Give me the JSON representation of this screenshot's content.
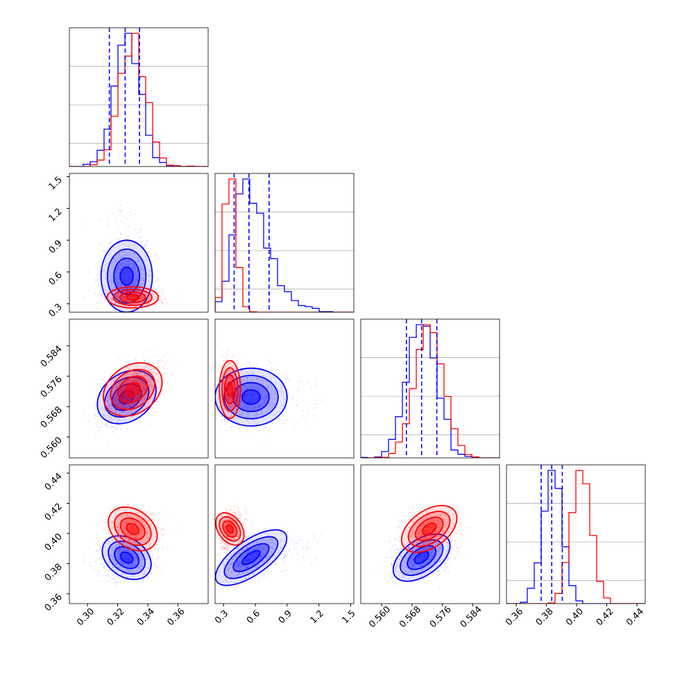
{
  "chart_data": {
    "type": "corner",
    "colors": {
      "blue": "#0000ff",
      "red": "#ff0000"
    },
    "series": [
      {
        "color": "blue",
        "means": [
          0.326,
          0.56,
          0.5705,
          0.384
        ],
        "sds": [
          0.0085,
          0.17,
          0.0038,
          0.0065
        ],
        "corr": [
          [
            1,
            0,
            0.6,
            -0.1
          ],
          [
            0,
            1,
            0,
            0.4
          ],
          [
            0.6,
            0,
            1,
            0.3
          ],
          [
            -0.1,
            0.4,
            0.3,
            1
          ]
        ]
      },
      {
        "color": "red",
        "means": [
          0.33,
          0.36,
          0.5725,
          0.403
        ],
        "sds": [
          0.0085,
          0.05,
          0.0038,
          0.0065
        ],
        "corr": [
          [
            1,
            0,
            0.6,
            -0.1
          ],
          [
            0,
            1,
            0,
            0.3
          ],
          [
            0.6,
            0,
            1,
            0.2
          ],
          [
            -0.1,
            0.3,
            0.2,
            1
          ]
        ]
      }
    ],
    "quantile_lines": [
      [
        0.3145,
        0.325,
        0.3345
      ],
      [
        0.4,
        0.54,
        0.73
      ],
      [
        0.5665,
        0.5705,
        0.5745
      ],
      [
        0.3765,
        0.3835,
        0.3905
      ]
    ],
    "ranges": [
      [
        0.288,
        0.38
      ],
      [
        0.22,
        1.53
      ],
      [
        0.5545,
        0.591
      ],
      [
        0.3535,
        0.4455
      ]
    ],
    "ticks": [
      [
        "0.30",
        "0.32",
        "0.34",
        "0.36"
      ],
      [
        "0.3",
        "0.6",
        "0.9",
        "1.2",
        "1.5"
      ],
      [
        "0.560",
        "0.568",
        "0.576",
        "0.584"
      ],
      [
        "0.36",
        "0.38",
        "0.40",
        "0.42",
        "0.44"
      ]
    ],
    "grid": true,
    "hist_style": "step"
  }
}
